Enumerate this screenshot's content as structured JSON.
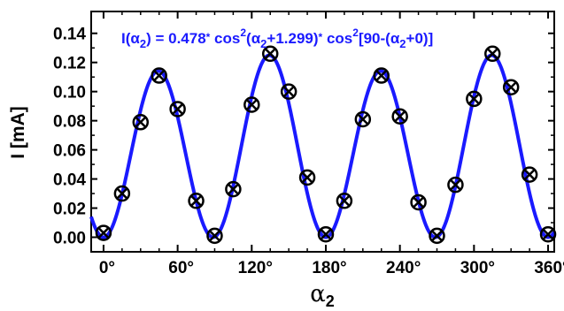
{
  "chart_data": {
    "type": "scatter",
    "title": "",
    "annotation": {
      "p1": "I(",
      "sym1": "α",
      "sub1": "2",
      "p2": ") = 0.478",
      "p3": "*",
      "p4": " cos",
      "sup1": "2",
      "p5": "(",
      "sym2": "α",
      "sub2": "2",
      "p6": "+1.299)",
      "p7": "*",
      "p8": " cos",
      "sup2": "2",
      "p9": "[90-(",
      "sym3": "α",
      "sub3": "2",
      "p10": "+0)]"
    },
    "ylabel": "I [mA]",
    "xlabel_symbol": "α",
    "xlabel_sub": "2",
    "xlim": [
      -10,
      365
    ],
    "ylim": [
      -0.01,
      0.155
    ],
    "yticks": [
      "0.00",
      "0.02",
      "0.04",
      "0.06",
      "0.08",
      "0.10",
      "0.12",
      "0.14"
    ],
    "ytick_values": [
      0,
      0.02,
      0.04,
      0.06,
      0.08,
      0.1,
      0.12,
      0.14
    ],
    "xticks": [
      "0°",
      "60°",
      "120°",
      "180°",
      "240°",
      "300°",
      "360°"
    ],
    "xtick_values": [
      0,
      60,
      120,
      180,
      240,
      300,
      360
    ],
    "fit_color": "#1a1aff",
    "marker_color": "#000000",
    "fit": {
      "amplitude": 0.478,
      "phase_deg": 1.299
    },
    "series": [
      {
        "marker": "circle-x",
        "x": [
          0,
          15,
          30,
          45,
          60,
          75,
          90,
          105,
          120,
          135,
          150,
          165,
          180,
          195,
          210,
          225,
          240,
          255,
          270,
          285,
          300,
          315,
          330,
          345,
          360
        ],
        "y": [
          0.003,
          0.03,
          0.079,
          0.111,
          0.088,
          0.025,
          0.001,
          0.033,
          0.091,
          0.126,
          0.1,
          0.041,
          0.002,
          0.025,
          0.081,
          0.111,
          0.083,
          0.024,
          0.001,
          0.036,
          0.095,
          0.126,
          0.103,
          0.043,
          0.002
        ]
      }
    ]
  }
}
